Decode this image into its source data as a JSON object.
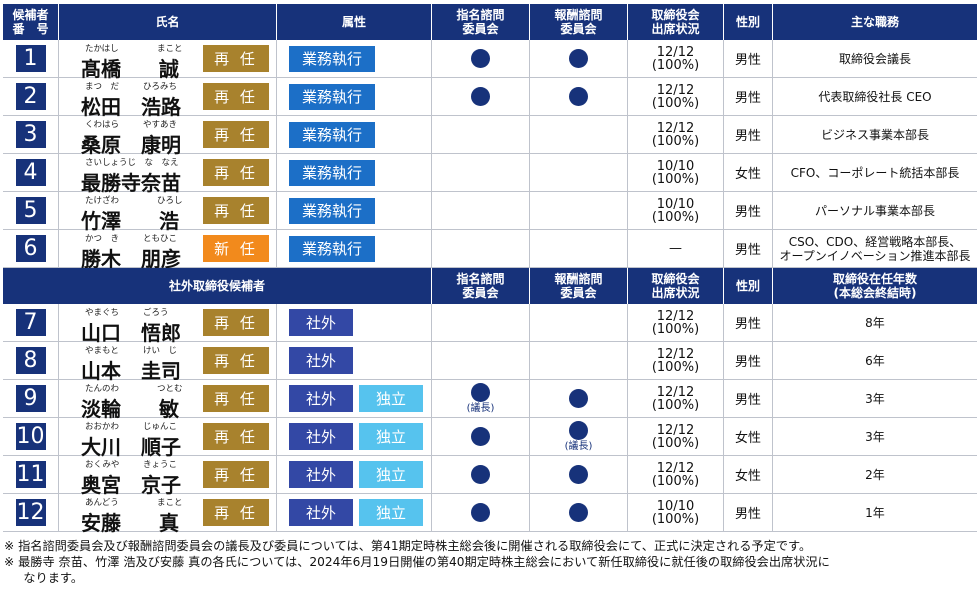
{
  "colors": {
    "header": "#17327a",
    "reappoint": "#a8822d",
    "new": "#f28a1c",
    "exec": "#1c6fc7",
    "outside": "#3348a5",
    "independent": "#56c3ee"
  },
  "header1": [
    "候補者\n番　号",
    "氏名",
    "属性",
    "指名諮問\n委員会",
    "報酬諮問\n委員会",
    "取締役会\n出席状況",
    "性別",
    "主な職務"
  ],
  "header2": [
    "社外取締役候補者",
    "指名諮問\n委員会",
    "報酬諮問\n委員会",
    "取締役会\n出席状況",
    "性別",
    "取締役在任年数\n(本総会終結時)"
  ],
  "rows": [
    {
      "no": "1",
      "ruby1": "たかはし",
      "ruby2": "まこと",
      "last": "髙橋",
      "first": "誠",
      "status": "再 任",
      "attrs": [
        "業務執行"
      ],
      "nom": true,
      "nom_chair": false,
      "rem": true,
      "rem_chair": false,
      "att": "12/12\n(100%)",
      "gender": "男性",
      "role": "取締役会議長"
    },
    {
      "no": "2",
      "ruby1": "まつ　だ",
      "ruby2": "ひろみち",
      "last": "松田",
      "first": "浩路",
      "status": "再 任",
      "attrs": [
        "業務執行"
      ],
      "nom": true,
      "nom_chair": false,
      "rem": true,
      "rem_chair": false,
      "att": "12/12\n(100%)",
      "gender": "男性",
      "role": "代表取締役社長 CEO"
    },
    {
      "no": "3",
      "ruby1": "くわはら",
      "ruby2": "やすあき",
      "last": "桑原",
      "first": "康明",
      "status": "再 任",
      "attrs": [
        "業務執行"
      ],
      "nom": false,
      "rem": false,
      "att": "12/12\n(100%)",
      "gender": "男性",
      "role": "ビジネス事業本部長"
    },
    {
      "no": "4",
      "ruby1": "さいしょうじ　な　なえ",
      "ruby2": "",
      "last": "最勝寺奈苗",
      "first": "",
      "status": "再 任",
      "attrs": [
        "業務執行"
      ],
      "nom": false,
      "rem": false,
      "att": "10/10\n(100%)",
      "gender": "女性",
      "role": "CFO、コーポレート統括本部長"
    },
    {
      "no": "5",
      "ruby1": "たけざわ",
      "ruby2": "ひろし",
      "last": "竹澤",
      "first": "浩",
      "status": "再 任",
      "attrs": [
        "業務執行"
      ],
      "nom": false,
      "rem": false,
      "att": "10/10\n(100%)",
      "gender": "男性",
      "role": "パーソナル事業本部長"
    },
    {
      "no": "6",
      "ruby1": "かつ　き",
      "ruby2": "ともひこ",
      "last": "勝木",
      "first": "朋彦",
      "status": "新 任",
      "attrs": [
        "業務執行"
      ],
      "nom": false,
      "rem": false,
      "att": "—",
      "gender": "男性",
      "role": "CSO、CDO、経営戦略本部長、\nオープンイノベーション推進本部長"
    },
    {
      "no": "7",
      "ruby1": "やまぐち",
      "ruby2": "ごろう",
      "last": "山口",
      "first": "悟郎",
      "status": "再 任",
      "attrs": [
        "社外"
      ],
      "nom": false,
      "rem": false,
      "att": "12/12\n(100%)",
      "gender": "男性",
      "role": "8年"
    },
    {
      "no": "8",
      "ruby1": "やまもと",
      "ruby2": "けい　じ",
      "last": "山本",
      "first": "圭司",
      "status": "再 任",
      "attrs": [
        "社外"
      ],
      "nom": false,
      "rem": false,
      "att": "12/12\n(100%)",
      "gender": "男性",
      "role": "6年"
    },
    {
      "no": "9",
      "ruby1": "たんのわ",
      "ruby2": "つとむ",
      "last": "淡輪",
      "first": "敏",
      "status": "再 任",
      "attrs": [
        "社外",
        "独立"
      ],
      "nom": true,
      "nom_chair": true,
      "rem": true,
      "rem_chair": false,
      "att": "12/12\n(100%)",
      "gender": "男性",
      "role": "3年"
    },
    {
      "no": "10",
      "ruby1": "おおかわ",
      "ruby2": "じゅんこ",
      "last": "大川",
      "first": "順子",
      "status": "再 任",
      "attrs": [
        "社外",
        "独立"
      ],
      "nom": true,
      "nom_chair": false,
      "rem": true,
      "rem_chair": true,
      "att": "12/12\n(100%)",
      "gender": "女性",
      "role": "3年"
    },
    {
      "no": "11",
      "ruby1": "おくみや",
      "ruby2": "きょうこ",
      "last": "奥宮",
      "first": "京子",
      "status": "再 任",
      "attrs": [
        "社外",
        "独立"
      ],
      "nom": true,
      "nom_chair": false,
      "rem": true,
      "rem_chair": false,
      "att": "12/12\n(100%)",
      "gender": "女性",
      "role": "2年"
    },
    {
      "no": "12",
      "ruby1": "あんどう",
      "ruby2": "まこと",
      "last": "安藤",
      "first": "真",
      "status": "再 任",
      "attrs": [
        "社外",
        "独立"
      ],
      "nom": true,
      "nom_chair": false,
      "rem": true,
      "rem_chair": false,
      "att": "10/10\n(100%)",
      "gender": "男性",
      "role": "1年"
    }
  ],
  "chair_label": "(議長)",
  "notes": [
    "※  指名諮問委員会及び報酬諮問委員会の議長及び委員については、第41期定時株主総会後に開催される取締役会にて、正式に決定される予定です。",
    "※  最勝寺 奈苗、竹澤 浩及び安藤 真の各氏については、2024年6月19日開催の第40期定時株主総会において新任取締役に就任後の取締役会出席状況に",
    "     なります。"
  ]
}
